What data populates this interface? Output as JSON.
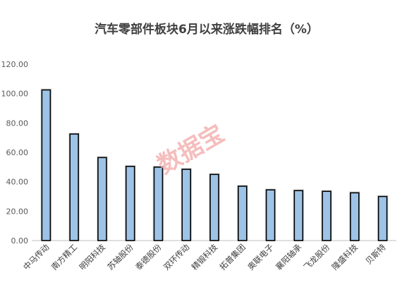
{
  "chart_data": {
    "type": "bar",
    "title": "汽车零部件板块6月以来涨跌幅排名（%）",
    "xlabel": "",
    "ylabel": "",
    "ylim": [
      0,
      120
    ],
    "yticks": [
      "0.00",
      "20.00",
      "40.00",
      "60.00",
      "80.00",
      "100.00",
      "120.00"
    ],
    "categories": [
      "中马传动",
      "南方精工",
      "明阳科技",
      "苏轴股份",
      "泰德股份",
      "双环传动",
      "精锻科技",
      "拓普集团",
      "奥联电子",
      "襄阳轴承",
      "飞龙股份",
      "隆盛科技",
      "贝斯特"
    ],
    "values": [
      102.5,
      72.5,
      56.5,
      50.5,
      50.0,
      48.5,
      45.0,
      37.0,
      34.5,
      34.0,
      33.5,
      32.5,
      30.0
    ],
    "grid": false,
    "legend": "none",
    "colors": {
      "bar_fill": "#9dc3e6",
      "bar_stroke": "#000000"
    }
  },
  "watermark": "数据宝"
}
